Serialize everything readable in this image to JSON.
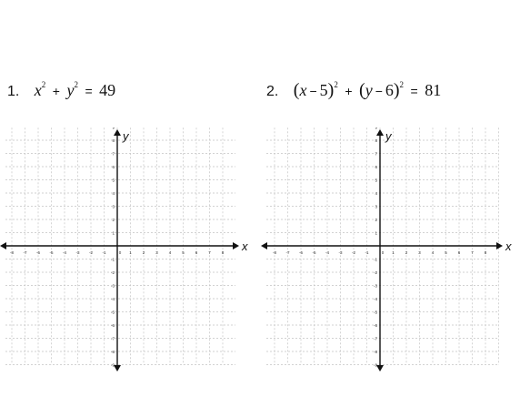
{
  "problems": [
    {
      "number": "1.",
      "eq": {
        "x": "x",
        "sq1": "2",
        "plus": "+",
        "y": "y",
        "sq2": "2",
        "equals": "=",
        "rhs": "49"
      },
      "graph": {
        "x_label": "x",
        "y_label": "y"
      }
    },
    {
      "number": "2.",
      "eq": {
        "lp1": "(",
        "x": "x",
        "m1": "−",
        "a": "5",
        "rp1": ")",
        "sq1": "2",
        "plus": "+",
        "lp2": "(",
        "y": "y",
        "m2": "−",
        "b": "6",
        "rp2": ")",
        "sq2": "2",
        "equals": "=",
        "rhs": "81"
      },
      "graph": {
        "x_label": "x",
        "y_label": "y"
      }
    }
  ],
  "grid": {
    "x_ticks": [
      "-9",
      "-8",
      "-7",
      "-6",
      "-5",
      "-4",
      "-3",
      "-2",
      "-1",
      "0",
      "1",
      "2",
      "3",
      "4",
      "5",
      "6",
      "7",
      "8",
      "9"
    ],
    "y_ticks_pos": [
      "1",
      "2",
      "3",
      "4",
      "5",
      "6",
      "7",
      "8",
      "9"
    ],
    "y_ticks_neg": [
      "-1",
      "-2",
      "-3",
      "-4",
      "-5",
      "-6",
      "-7",
      "-8",
      "-9"
    ],
    "colors": {
      "grid": "#c4c4c4",
      "axis": "#111111"
    }
  }
}
